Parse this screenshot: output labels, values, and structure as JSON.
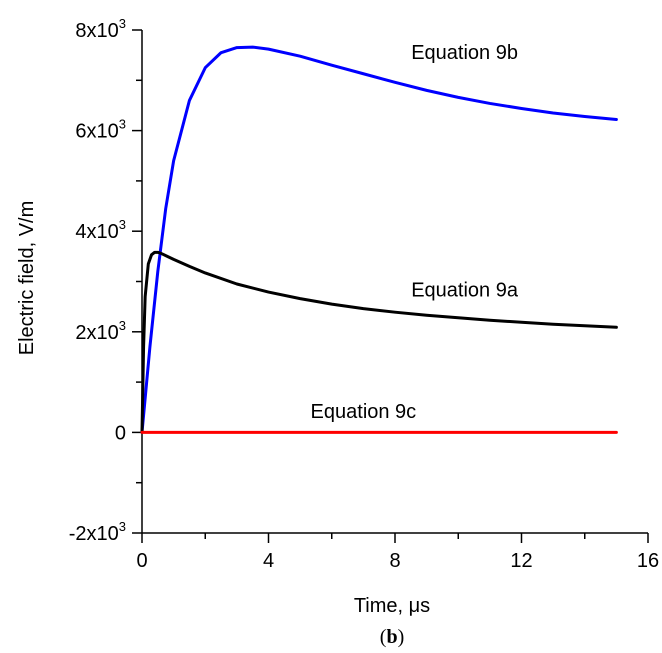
{
  "chart_data": {
    "type": "line",
    "xlabel": "Time, μs",
    "ylabel": "Electric field, V/m",
    "xlim": [
      0,
      16
    ],
    "ylim": [
      -2000,
      8000
    ],
    "x_ticks": [
      0,
      4,
      8,
      12,
      16
    ],
    "y_ticks": [
      {
        "value": 8000,
        "mantissa": "8x10",
        "exp": "3"
      },
      {
        "value": 6000,
        "mantissa": "6x10",
        "exp": "3"
      },
      {
        "value": 4000,
        "mantissa": "4x10",
        "exp": "3"
      },
      {
        "value": 2000,
        "mantissa": "2x10",
        "exp": "3"
      },
      {
        "value": 0,
        "mantissa": "0",
        "exp": ""
      },
      {
        "value": -2000,
        "mantissa": "-2x10",
        "exp": "3"
      }
    ],
    "grid": false,
    "series": [
      {
        "name": "Equation 9b",
        "color": "#0000ff",
        "x": [
          0,
          0.25,
          0.5,
          0.75,
          1.0,
          1.5,
          2.0,
          2.5,
          3.0,
          3.5,
          4.0,
          5.0,
          6.0,
          7.0,
          8.0,
          9.0,
          10.0,
          11.0,
          12.0,
          13.0,
          14.0,
          15.0
        ],
        "y": [
          0,
          1700,
          3200,
          4450,
          5400,
          6600,
          7250,
          7550,
          7650,
          7660,
          7620,
          7480,
          7300,
          7130,
          6960,
          6800,
          6660,
          6540,
          6440,
          6350,
          6280,
          6220
        ]
      },
      {
        "name": "Equation 9a",
        "color": "#000000",
        "x": [
          0,
          0.05,
          0.1,
          0.2,
          0.3,
          0.4,
          0.5,
          0.6,
          0.8,
          1.0,
          1.5,
          2.0,
          3.0,
          4.0,
          5.0,
          6.0,
          7.0,
          8.0,
          9.0,
          10.0,
          11.0,
          12.0,
          13.0,
          14.0,
          15.0
        ],
        "y": [
          0,
          1700,
          2700,
          3350,
          3530,
          3580,
          3580,
          3560,
          3500,
          3440,
          3300,
          3170,
          2950,
          2790,
          2660,
          2550,
          2460,
          2390,
          2330,
          2280,
          2230,
          2190,
          2150,
          2120,
          2090
        ]
      },
      {
        "name": "Equation 9c",
        "color": "#ff0000",
        "x": [
          0,
          15
        ],
        "y": [
          0,
          0
        ]
      }
    ],
    "annotations": [
      {
        "text": "Equation 9b",
        "x": 10.2,
        "y": 7420
      },
      {
        "text": "Equation 9a",
        "x": 10.2,
        "y": 2700
      },
      {
        "text": "Equation 9c",
        "x": 7.0,
        "y": 290
      }
    ]
  },
  "caption": {
    "open": "(",
    "letter": "b",
    "close": ")"
  }
}
